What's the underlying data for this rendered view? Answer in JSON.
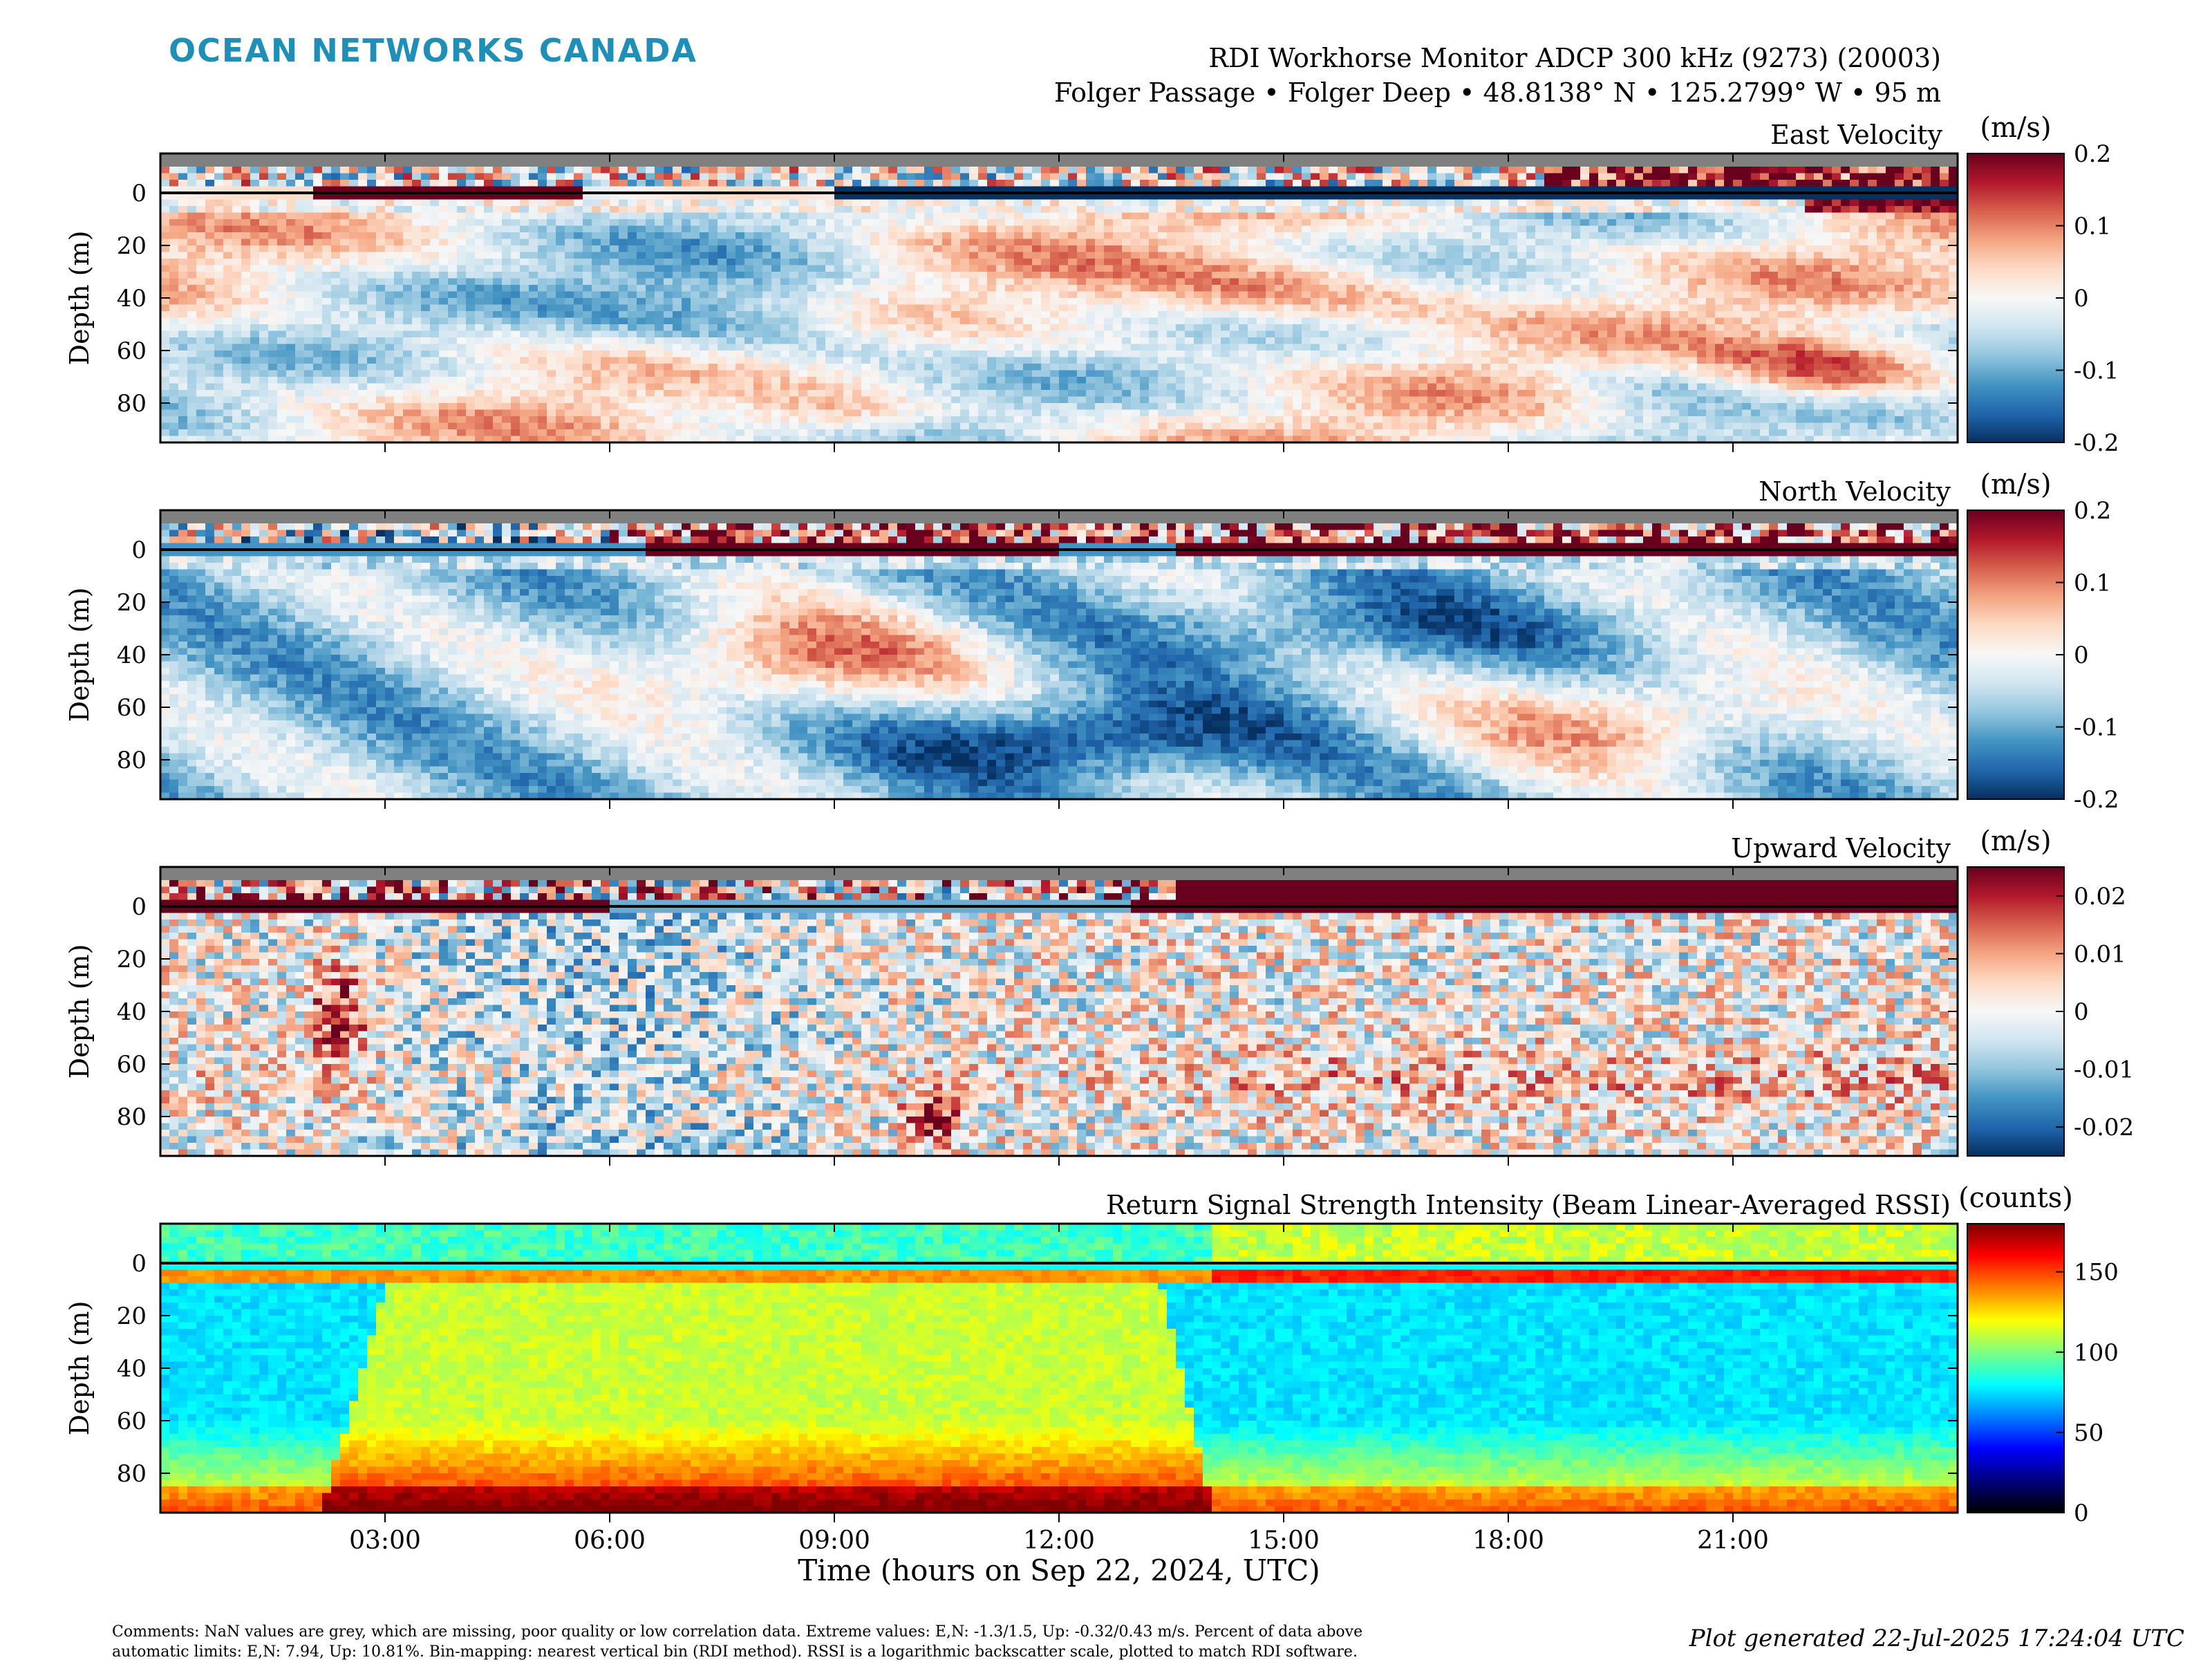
{
  "header": {
    "logo_text": "OCEAN NETWORKS CANADA",
    "line1": "RDI Workhorse Monitor ADCP 300 kHz (9273) (20003)",
    "line2": "Folger Passage • Folger Deep • 48.8138° N • 125.2799° W • 95 m"
  },
  "colors": {
    "logo": "#1f8fb8",
    "nan_grey": "#808080",
    "diverging": [
      "#053061",
      "#2166ac",
      "#4393c3",
      "#92c5de",
      "#d1e5f0",
      "#f7f7f7",
      "#fddbc7",
      "#f4a582",
      "#d6604d",
      "#b2182b",
      "#67001f"
    ],
    "jet": [
      "#000000",
      "#00007f",
      "#0000ff",
      "#007fff",
      "#00ffff",
      "#7fff7f",
      "#ffff00",
      "#ff7f00",
      "#ff0000",
      "#7f0000"
    ]
  },
  "chart_data": [
    {
      "type": "heatmap",
      "title": "East Velocity",
      "xlabel": "",
      "ylabel": "Depth (m)",
      "x_ticks": [
        "03:00",
        "06:00",
        "09:00",
        "12:00",
        "15:00",
        "18:00",
        "21:00"
      ],
      "y_ticks": [
        0,
        20,
        40,
        60,
        80
      ],
      "ylim": [
        95,
        -15
      ],
      "xlim_hours": [
        0,
        24
      ],
      "colorbar": {
        "unit": "(m/s)",
        "ticks": [
          "0.2",
          "0.1",
          "0",
          "-0.1",
          "-0.2"
        ],
        "range": [
          -0.2,
          0.2
        ],
        "colormap": "diverging"
      }
    },
    {
      "type": "heatmap",
      "title": "North Velocity",
      "xlabel": "",
      "ylabel": "Depth (m)",
      "x_ticks": [
        "03:00",
        "06:00",
        "09:00",
        "12:00",
        "15:00",
        "18:00",
        "21:00"
      ],
      "y_ticks": [
        0,
        20,
        40,
        60,
        80
      ],
      "ylim": [
        95,
        -15
      ],
      "xlim_hours": [
        0,
        24
      ],
      "colorbar": {
        "unit": "(m/s)",
        "ticks": [
          "0.2",
          "0.1",
          "0",
          "-0.1",
          "-0.2"
        ],
        "range": [
          -0.2,
          0.2
        ],
        "colormap": "diverging"
      }
    },
    {
      "type": "heatmap",
      "title": "Upward Velocity",
      "xlabel": "",
      "ylabel": "Depth (m)",
      "x_ticks": [
        "03:00",
        "06:00",
        "09:00",
        "12:00",
        "15:00",
        "18:00",
        "21:00"
      ],
      "y_ticks": [
        0,
        20,
        40,
        60,
        80
      ],
      "ylim": [
        95,
        -15
      ],
      "xlim_hours": [
        0,
        24
      ],
      "colorbar": {
        "unit": "(m/s)",
        "ticks": [
          "0.02",
          "0.01",
          "0",
          "-0.01",
          "-0.02"
        ],
        "range": [
          -0.025,
          0.025
        ],
        "colormap": "diverging"
      }
    },
    {
      "type": "heatmap",
      "title": "Return Signal Strength Intensity (Beam Linear-Averaged RSSI)",
      "xlabel": "Time (hours on Sep 22, 2024, UTC)",
      "ylabel": "Depth (m)",
      "x_ticks": [
        "03:00",
        "06:00",
        "09:00",
        "12:00",
        "15:00",
        "18:00",
        "21:00"
      ],
      "y_ticks": [
        0,
        20,
        40,
        60,
        80
      ],
      "ylim": [
        95,
        -15
      ],
      "xlim_hours": [
        0,
        24
      ],
      "colorbar": {
        "unit": "(counts)",
        "ticks": [
          "150",
          "100",
          "50",
          "0"
        ],
        "range": [
          0,
          180
        ],
        "colormap": "jet"
      }
    }
  ],
  "footer": {
    "comments_line1": "Comments: NaN values are grey, which are missing, poor quality or low correlation data. Extreme values: E,N: -1.3/1.5, Up: -0.32/0.43 m/s. Percent of data above",
    "comments_line2": "automatic limits: E,N: 7.94, Up: 10.81%. Bin-mapping: nearest vertical bin (RDI method). RSSI is a logarithmic backscatter scale, plotted to match RDI software.",
    "generated": "Plot generated 22-Jul-2025 17:24:04 UTC"
  }
}
